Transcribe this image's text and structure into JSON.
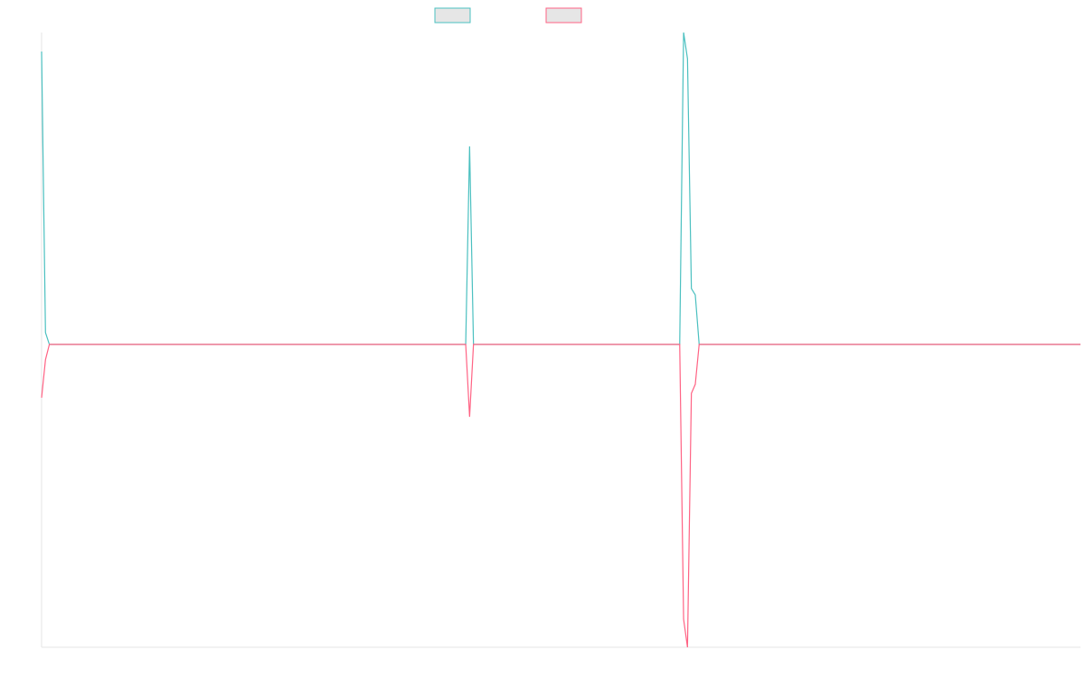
{
  "chart_data": {
    "type": "line",
    "x": [
      0,
      1,
      2,
      109,
      110,
      111,
      164,
      165,
      166,
      167,
      168,
      169,
      267
    ],
    "xlim": [
      0,
      267
    ],
    "ylim": [
      -97.1,
      100
    ],
    "series": [
      {
        "color": "#4bc0c0",
        "values": [
          93.9,
          3.8,
          0,
          0,
          63.5,
          0,
          0,
          100,
          91.6,
          17.9,
          15.9,
          0,
          0
        ]
      },
      {
        "color": "#ff6384",
        "values": [
          -17.1,
          -4.9,
          0,
          0,
          -23.2,
          0,
          0,
          -88.1,
          -97.1,
          -15.7,
          -12.8,
          0,
          0
        ]
      }
    ]
  }
}
